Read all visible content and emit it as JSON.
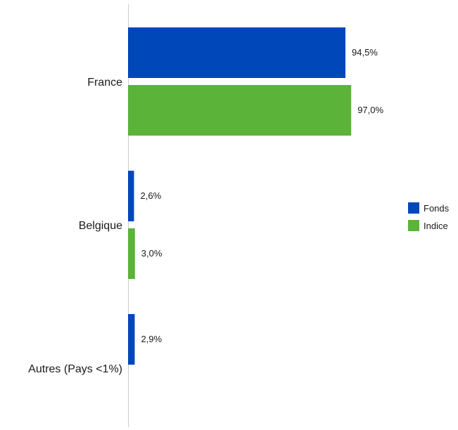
{
  "chart_data": {
    "type": "bar",
    "orientation": "horizontal",
    "categories": [
      "France",
      "Belgique",
      "Autres (Pays <1%)"
    ],
    "series": [
      {
        "name": "Fonds",
        "color": "#0047BA",
        "values": [
          94.5,
          2.6,
          2.9
        ],
        "labels": [
          "94,5%",
          "2,6%",
          "2,9%"
        ]
      },
      {
        "name": "Indice",
        "color": "#5BB33A",
        "values": [
          97.0,
          3.0,
          null
        ],
        "labels": [
          "97,0%",
          "3,0%",
          ""
        ]
      }
    ],
    "xlim": [
      0,
      100
    ],
    "grid": false,
    "legend_position": "right"
  }
}
